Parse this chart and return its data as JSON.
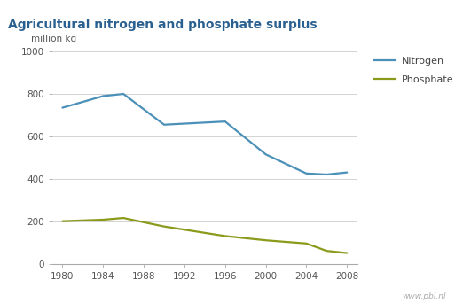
{
  "title": "Agricultural nitrogen and phosphate surplus",
  "ylabel": "million kg",
  "watermark": "www.pbl.nl",
  "background_color": "#ffffff",
  "title_bg_color": "#ddeef7",
  "plot_bg_color": "#ffffff",
  "ylim": [
    0,
    1000
  ],
  "yticks": [
    0,
    200,
    400,
    600,
    800,
    1000
  ],
  "nitrogen": {
    "years": [
      1980,
      1984,
      1986,
      1990,
      1992,
      1996,
      2000,
      2004,
      2006,
      2008
    ],
    "values": [
      735,
      790,
      800,
      655,
      660,
      670,
      515,
      425,
      420,
      430
    ],
    "color": "#4a90b8",
    "label": "Nitrogen",
    "linewidth": 1.6
  },
  "phosphate": {
    "years": [
      1980,
      1984,
      1986,
      1990,
      1992,
      1996,
      2000,
      2004,
      2006,
      2008
    ],
    "values": [
      200,
      207,
      215,
      175,
      160,
      130,
      110,
      95,
      60,
      50
    ],
    "color": "#8b9a1a",
    "label": "Phosphate",
    "linewidth": 1.6
  },
  "xticks": [
    1980,
    1984,
    1988,
    1992,
    1996,
    2000,
    2004,
    2008
  ],
  "xlim": [
    1979,
    2009
  ],
  "legend_fontsize": 8,
  "axis_fontsize": 7.5,
  "title_fontsize": 10,
  "ylabel_fontsize": 7.5,
  "title_color": "#2a6090",
  "tick_color": "#555555",
  "watermark_color": "#aaaaaa",
  "grid_color": "#cccccc",
  "spine_color": "#aaaaaa"
}
